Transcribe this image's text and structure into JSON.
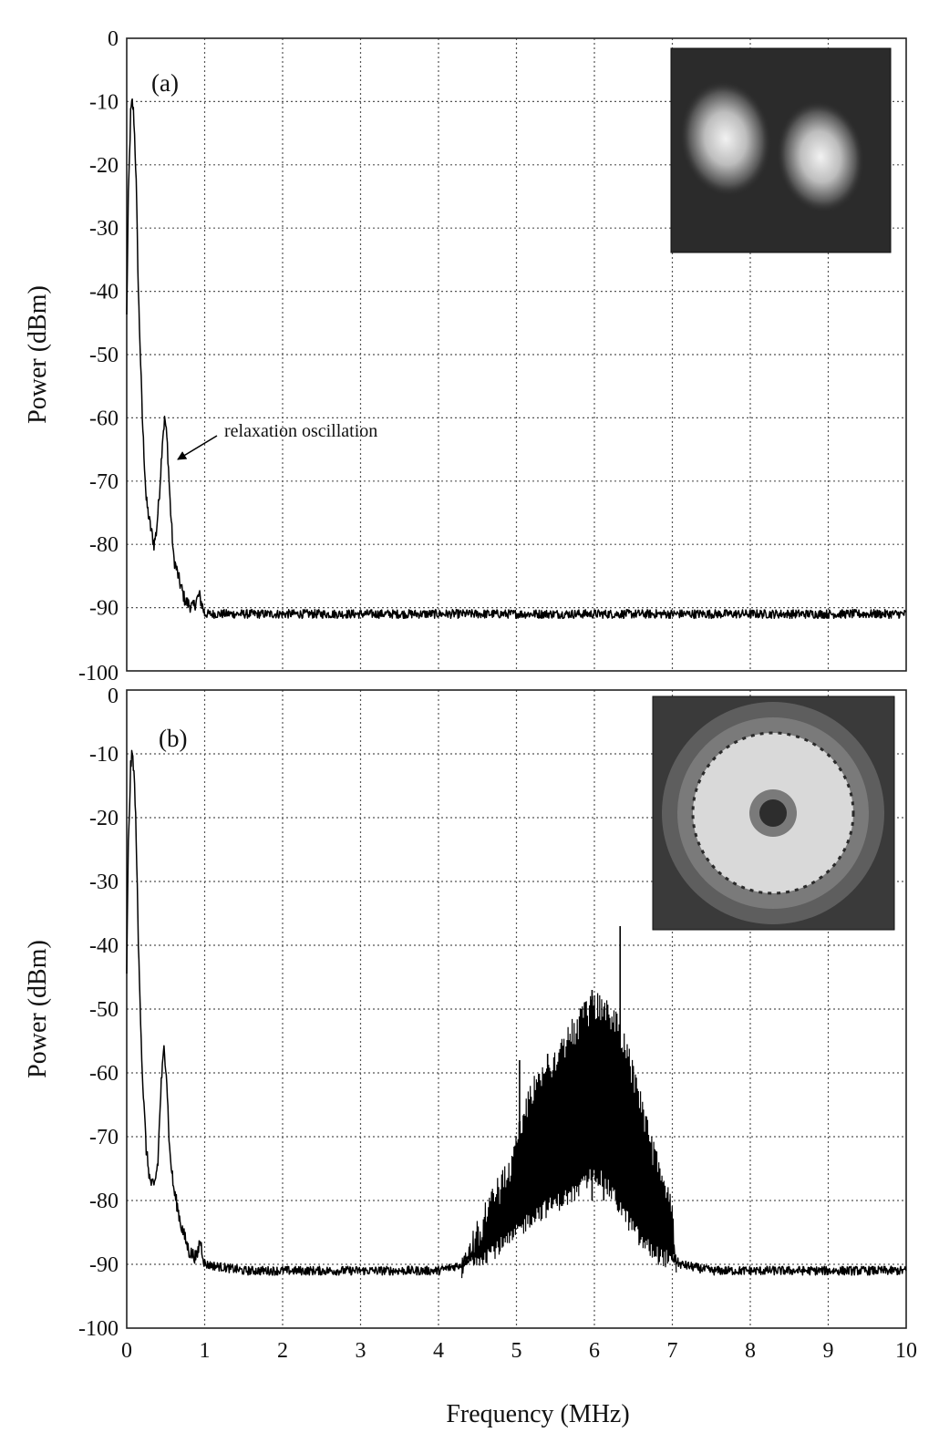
{
  "chart_data": [
    {
      "type": "line",
      "panel_label": "(a)",
      "xlabel": "",
      "ylabel": "Power (dBm)",
      "xlim": [
        0,
        10
      ],
      "ylim": [
        -100,
        0
      ],
      "x_ticks": [
        "0",
        "1",
        "2",
        "3",
        "4",
        "5",
        "6",
        "7",
        "8",
        "9",
        "10"
      ],
      "y_ticks": [
        "0",
        "-10",
        "-20",
        "-30",
        "-40",
        "-50",
        "-60",
        "-70",
        "-80",
        "-90",
        "-100"
      ],
      "grid": true,
      "annotation": {
        "text": "relaxation oscillation",
        "points_to": [
          0.5,
          -67
        ]
      },
      "inset": "two-lobe-beam-image",
      "series": [
        {
          "x": [
            0,
            0.02,
            0.05,
            0.07,
            0.09,
            0.12,
            0.15,
            0.2,
            0.25,
            0.3,
            0.35,
            0.38,
            0.42,
            0.46,
            0.49,
            0.52,
            0.56,
            0.6,
            0.68,
            0.75,
            0.85,
            0.93,
            1.0,
            1.5,
            2,
            3,
            4,
            5,
            6,
            7,
            8,
            9,
            10
          ],
          "y": [
            -44,
            -26,
            -12,
            -10,
            -12,
            -22,
            -40,
            -60,
            -73,
            -77,
            -80,
            -78,
            -72,
            -63,
            -60,
            -64,
            -74,
            -82,
            -86,
            -89,
            -90,
            -88,
            -91,
            -91,
            -91,
            -91,
            -91,
            -91,
            -91,
            -91,
            -91,
            -91,
            -91
          ]
        }
      ]
    },
    {
      "type": "line",
      "panel_label": "(b)",
      "xlabel": "Frequency (MHz)",
      "ylabel": "Power (dBm)",
      "xlim": [
        0,
        10
      ],
      "ylim": [
        -100,
        0
      ],
      "x_ticks": [
        "0",
        "1",
        "2",
        "3",
        "4",
        "5",
        "6",
        "7",
        "8",
        "9",
        "10"
      ],
      "y_ticks": [
        "0",
        "-10",
        "-20",
        "-30",
        "-40",
        "-50",
        "-60",
        "-70",
        "-80",
        "-90",
        "-100"
      ],
      "grid": true,
      "inset": "ring-beam-image",
      "series": [
        {
          "x": [
            0,
            0.02,
            0.05,
            0.07,
            0.09,
            0.12,
            0.15,
            0.2,
            0.25,
            0.3,
            0.35,
            0.4,
            0.44,
            0.48,
            0.51,
            0.55,
            0.6,
            0.7,
            0.8,
            0.9,
            0.94,
            1.0,
            1.5,
            2,
            3,
            4,
            4.3,
            4.6,
            5.0,
            5.5,
            5.8,
            6.0,
            6.3,
            6.6,
            6.8,
            7.0,
            7.1,
            7.5,
            8,
            9,
            10
          ],
          "y": [
            -44,
            -25,
            -12,
            -10,
            -12,
            -22,
            -40,
            -60,
            -72,
            -77,
            -78,
            -74,
            -62,
            -56,
            -60,
            -72,
            -78,
            -84,
            -88,
            -89,
            -86,
            -90,
            -91,
            -91,
            -91,
            -91,
            -90,
            -87,
            -80,
            -71,
            -66,
            -65,
            -70,
            -78,
            -84,
            -89,
            -90,
            -91,
            -91,
            -91,
            -91
          ]
        }
      ],
      "spectral_band": {
        "x_start": 4.3,
        "x_end": 7.05,
        "envelope_x": [
          4.3,
          4.6,
          4.9,
          5.2,
          5.5,
          5.8,
          6.0,
          6.2,
          6.4,
          6.6,
          6.8,
          7.0,
          7.05
        ],
        "envelope_top": [
          -89,
          -80,
          -73,
          -60,
          -55,
          -50,
          -47,
          -48,
          -53,
          -63,
          -72,
          -79,
          -88
        ],
        "envelope_bottom": [
          -91,
          -90,
          -88,
          -84,
          -82,
          -80,
          -77,
          -80,
          -84,
          -88,
          -90,
          -91,
          -91
        ],
        "spikes": [
          {
            "x": 5.04,
            "y": -58
          },
          {
            "x": 5.4,
            "y": -57
          },
          {
            "x": 5.97,
            "y": -47
          },
          {
            "x": 6.33,
            "y": -37
          },
          {
            "x": 6.12,
            "y": -50
          }
        ]
      }
    }
  ]
}
